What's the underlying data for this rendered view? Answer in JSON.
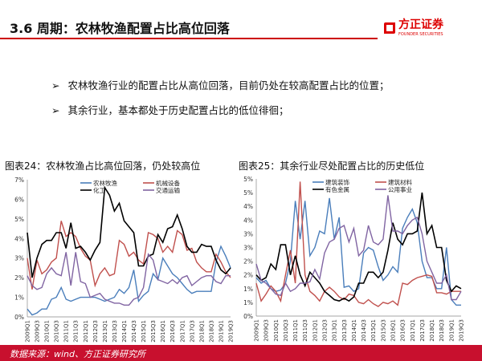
{
  "header": {
    "title": "3.6 周期：农林牧渔配置占比高位回落",
    "logo_cn": "方正证券",
    "logo_en": "FOUNDER SECURITIES"
  },
  "bullets": [
    {
      "marker": "➢",
      "text": "农林牧渔行业的配置占比从高位回落，目前仍处在较高配置占比的位置；"
    },
    {
      "marker": "➢",
      "text": "其余行业，基本都处于历史配置占比的低位徘徊；"
    }
  ],
  "footer": {
    "source": "数据来源：wind、方正证券研究所"
  },
  "chart_data": [
    {
      "type": "line",
      "title": "图表24：农林牧渔占比高位回落，仍处较高位",
      "ylim": [
        0,
        7
      ],
      "yticks": [
        "0%",
        "1%",
        "2%",
        "3%",
        "4%",
        "5%",
        "6%",
        "7%"
      ],
      "xlabels": [
        "2009Q1",
        "2009Q3",
        "2010Q1",
        "2010Q3",
        "2011Q1",
        "2011Q3",
        "2012Q1",
        "2012Q3",
        "2013Q1",
        "2013Q3",
        "2014Q1",
        "2014Q3",
        "2015Q1",
        "2015Q3",
        "2016Q1",
        "2016Q3",
        "2017Q1",
        "2017Q3",
        "2018Q1",
        "2018Q3",
        "2019Q1",
        "2019Q3"
      ],
      "series": [
        {
          "name": "农林牧渔",
          "color": "#4a7ebb",
          "values": [
            0.4,
            0.1,
            0.2,
            0.4,
            0.4,
            0.9,
            1.0,
            1.5,
            0.9,
            0.8,
            0.9,
            1.0,
            1.0,
            1.0,
            1.0,
            0.9,
            0.8,
            0.9,
            1.0,
            1.4,
            1.2,
            1.5,
            2.4,
            0.8,
            1.1,
            1.3,
            2.2,
            1.9,
            3.0,
            2.6,
            2.2,
            2.0,
            1.7,
            1.4,
            1.2,
            1.3,
            1.3,
            1.3,
            1.3,
            2.8,
            3.6,
            3.1,
            2.5
          ]
        },
        {
          "name": "机械设备",
          "color": "#c0504d",
          "values": [
            3.0,
            1.4,
            2.9,
            2.2,
            2.4,
            2.8,
            3.0,
            4.9,
            4.1,
            4.3,
            4.1,
            3.5,
            3.1,
            2.9,
            1.6,
            2.2,
            2.5,
            2.1,
            2.2,
            3.9,
            3.7,
            3.1,
            3.3,
            2.9,
            2.7,
            4.3,
            4.2,
            4.0,
            3.3,
            3.6,
            3.3,
            4.4,
            4.2,
            3.4,
            3.5,
            2.8,
            2.5,
            2.3,
            2.3,
            3.2,
            2.8,
            2.3,
            2.0
          ]
        },
        {
          "name": "化工",
          "color": "#000000",
          "values": [
            4.3,
            2.0,
            3.0,
            3.7,
            3.9,
            3.9,
            4.3,
            4.3,
            3.5,
            4.8,
            3.5,
            3.6,
            3.3,
            2.9,
            3.4,
            3.8,
            6.6,
            6.2,
            5.4,
            5.8,
            4.9,
            4.6,
            4.3,
            2.6,
            2.6,
            3.1,
            3.2,
            4.2,
            3.8,
            4.5,
            4.6,
            5.2,
            4.5,
            3.6,
            3.3,
            3.3,
            3.7,
            3.6,
            3.6,
            2.9,
            2.4,
            2.2,
            2.5
          ]
        },
        {
          "name": "交通运输",
          "color": "#8064a2",
          "values": [
            2.1,
            1.6,
            1.4,
            1.5,
            2.2,
            2.5,
            2.2,
            2.1,
            3.3,
            1.6,
            3.3,
            1.8,
            1.7,
            1.0,
            1.1,
            1.2,
            0.9,
            0.8,
            0.7,
            0.7,
            0.6,
            0.6,
            0.9,
            1.0,
            1.5,
            3.2,
            2.9,
            1.9,
            1.8,
            1.7,
            1.9,
            1.7,
            2.0,
            2.1,
            1.6,
            1.8,
            2.0,
            2.1,
            2.1,
            1.8,
            1.7,
            2.1,
            2.1
          ]
        }
      ]
    },
    {
      "type": "line",
      "title": "图表25：其余行业尽处配置占比的历史低位",
      "ylim": [
        0,
        5
      ],
      "yticks": [
        "0%",
        "1%",
        "1%",
        "2%",
        "2%",
        "3%",
        "3%",
        "4%",
        "4%",
        "5%",
        "5%"
      ],
      "xlabels": [
        "2009Q1",
        "2009Q3",
        "2010Q1",
        "2010Q3",
        "2011Q1",
        "2011Q3",
        "2012Q1",
        "2012Q3",
        "2013Q1",
        "2013Q3",
        "2014Q1",
        "2014Q3",
        "2015Q1",
        "2015Q3",
        "2016Q1",
        "2016Q3",
        "2017Q1",
        "2017Q3",
        "2018Q1",
        "2018Q3",
        "2019Q1",
        "2019Q3"
      ],
      "series": [
        {
          "name": "建筑装饰",
          "color": "#4a7ebb",
          "values": [
            1.4,
            1.2,
            1.3,
            1.0,
            0.9,
            0.95,
            1.2,
            2.0,
            4.2,
            2.8,
            4.2,
            2.2,
            2.5,
            3.1,
            3.0,
            4.3,
            2.8,
            3.6,
            1.05,
            1.1,
            0.9,
            1.0,
            2.3,
            2.5,
            2.4,
            1.8,
            1.3,
            1.5,
            1.8,
            1.6,
            3.2,
            3.6,
            3.9,
            3.4,
            2.0,
            1.4,
            1.4,
            1.0,
            1.0,
            2.5,
            0.6,
            0.4,
            0.4
          ]
        },
        {
          "name": "建筑材料",
          "color": "#c0504d",
          "values": [
            1.2,
            0.55,
            0.8,
            1.1,
            0.9,
            0.55,
            1.5,
            2.4,
            1.2,
            4.9,
            1.5,
            0.9,
            0.75,
            0.55,
            0.9,
            1.05,
            0.9,
            0.7,
            0.6,
            0.8,
            0.75,
            0.5,
            0.45,
            0.6,
            0.45,
            0.35,
            0.5,
            0.45,
            0.55,
            0.4,
            1.2,
            1.15,
            1.3,
            1.4,
            1.45,
            1.5,
            1.45,
            0.85,
            0.85,
            0.8,
            0.9,
            0.9,
            0.9
          ]
        },
        {
          "name": "有色金属",
          "color": "#000000",
          "values": [
            1.5,
            1.3,
            1.4,
            1.9,
            1.7,
            2.6,
            2.6,
            1.5,
            2.2,
            1.5,
            1.1,
            1.6,
            1.4,
            1.2,
            0.9,
            0.75,
            0.6,
            0.55,
            0.65,
            0.55,
            0.7,
            1.2,
            1.2,
            1.6,
            1.6,
            1.4,
            1.6,
            2.4,
            3.4,
            2.8,
            2.6,
            3.0,
            3.0,
            3.1,
            4.5,
            3.0,
            3.3,
            2.5,
            2.5,
            1.3,
            0.9,
            1.1,
            1.0
          ]
        },
        {
          "name": "公用事业",
          "color": "#8064a2",
          "values": [
            1.9,
            1.3,
            1.2,
            1.0,
            0.8,
            0.75,
            1.2,
            0.9,
            1.0,
            1.2,
            1.2,
            1.25,
            1.7,
            1.35,
            2.3,
            2.7,
            2.8,
            3.2,
            3.3,
            2.7,
            3.2,
            2.2,
            2.4,
            3.3,
            2.7,
            2.6,
            2.8,
            4.4,
            3.1,
            3.1,
            3.0,
            3.3,
            3.5,
            3.6,
            3.0,
            2.0,
            1.6,
            1.2,
            1.2,
            1.5,
            0.6,
            0.6,
            0.9
          ]
        }
      ]
    }
  ]
}
